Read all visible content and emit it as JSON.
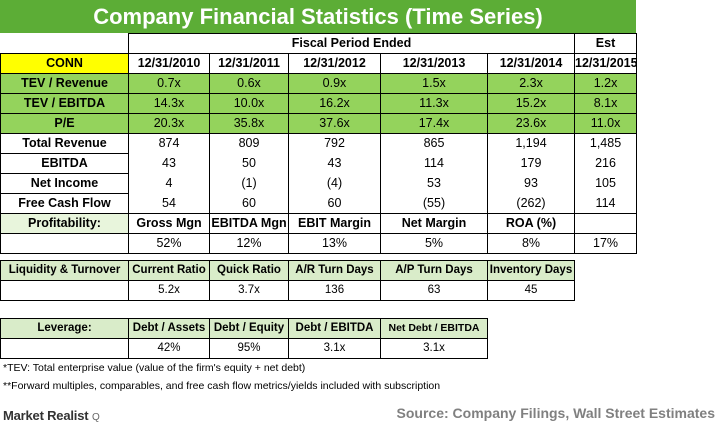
{
  "title": "Company Financial Statistics (Time Series)",
  "header": {
    "fiscal_label": "Fiscal Period Ended",
    "est_label": "Est",
    "ticker": "CONN",
    "periods": [
      "12/31/2010",
      "12/31/2011",
      "12/31/2012",
      "12/31/2013",
      "12/31/2014",
      "12/31/2015"
    ]
  },
  "multiples": [
    {
      "label": "TEV / Revenue",
      "values": [
        "0.7x",
        "0.6x",
        "0.9x",
        "1.5x",
        "2.3x",
        "1.2x"
      ]
    },
    {
      "label": "TEV / EBITDA",
      "values": [
        "14.3x",
        "10.0x",
        "16.2x",
        "11.3x",
        "15.2x",
        "8.1x"
      ]
    },
    {
      "label": "P/E",
      "values": [
        "20.3x",
        "35.8x",
        "37.6x",
        "17.4x",
        "23.6x",
        "11.0x"
      ]
    }
  ],
  "financials": [
    {
      "label": "Total Revenue",
      "values": [
        "874",
        "809",
        "792",
        "865",
        "1,194",
        "1,485"
      ]
    },
    {
      "label": "EBITDA",
      "values": [
        "43",
        "50",
        "43",
        "114",
        "179",
        "216"
      ]
    },
    {
      "label": "Net Income",
      "values": [
        "4",
        "(1)",
        "(4)",
        "53",
        "93",
        "105"
      ]
    },
    {
      "label": "Free Cash Flow",
      "values": [
        "54",
        "60",
        "60",
        "(55)",
        "(262)",
        "114"
      ]
    }
  ],
  "profitability": {
    "label": "Profitability:",
    "headers": [
      "Gross Mgn",
      "EBITDA Mgn",
      "EBIT Margin",
      "Net Margin",
      "ROA (%)",
      ""
    ],
    "values": [
      "52%",
      "12%",
      "13%",
      "5%",
      "8%",
      "17%"
    ]
  },
  "liquidity": {
    "label": "Liquidity & Turnover",
    "headers": [
      "Current Ratio",
      "Quick Ratio",
      "A/R Turn Days",
      "A/P Turn Days",
      "Inventory Days"
    ],
    "values": [
      "5.2x",
      "3.7x",
      "136",
      "63",
      "45"
    ]
  },
  "leverage": {
    "label": "Leverage:",
    "headers": [
      "Debt / Assets",
      "Debt / Equity",
      "Debt / EBITDA",
      "Net Debt / EBITDA"
    ],
    "values": [
      "42%",
      "95%",
      "3.1x",
      "3.1x"
    ]
  },
  "notes": [
    "*TEV: Total enterprise value (value of the firm's equity + net debt)",
    "**Forward multiples, comparables, and free cash flow metrics/yields included with subscription"
  ],
  "brand": {
    "name": "Market Realist",
    "mark": "Q"
  },
  "source": "Source: Company Filings, Wall Street Estimates"
}
